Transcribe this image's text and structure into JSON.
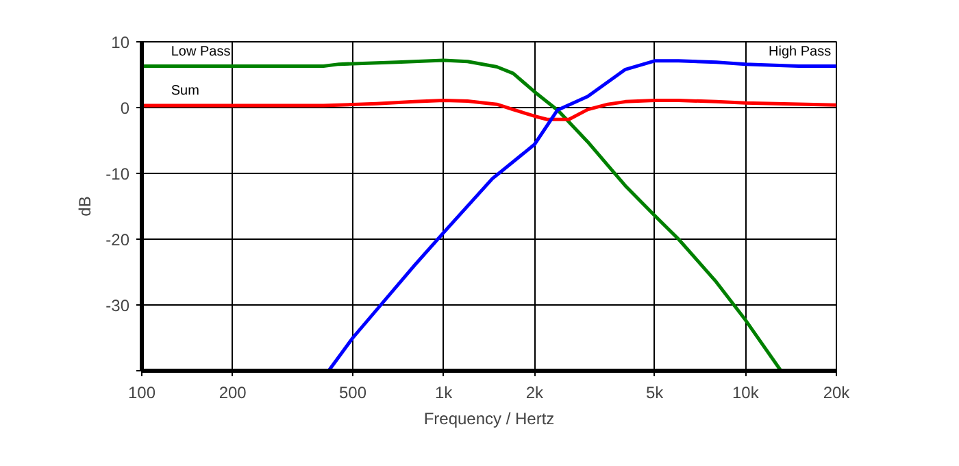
{
  "chart_data": {
    "type": "line",
    "xlabel": "Frequency / Hertz",
    "ylabel": "dB",
    "log": "x",
    "xlim": [
      100,
      20000
    ],
    "ylim": [
      -40,
      10
    ],
    "xticks": [
      100,
      200,
      500,
      {
        "value": 1000,
        "label": "1k"
      },
      {
        "value": 2000,
        "label": "2k"
      },
      {
        "value": 5000,
        "label": "5k"
      },
      {
        "value": 10000,
        "label": "10k"
      },
      {
        "value": 20000,
        "label": "20k"
      }
    ],
    "yticks": [
      {
        "value": -40,
        "label": null
      },
      -30,
      -20,
      -10,
      0,
      10
    ],
    "grid": true,
    "line_style": "solid",
    "series": [
      {
        "name": "Low Pass",
        "color": "#008000",
        "x": [
          100,
          400,
          450,
          700,
          1000,
          1200,
          1500,
          1700,
          2000,
          2400,
          3000,
          4000,
          5000,
          6000,
          8000,
          10000,
          13100
        ],
        "values": [
          6.3,
          6.3,
          6.6,
          6.9,
          7.2,
          7.0,
          6.2,
          5.2,
          2.4,
          -0.5,
          -5.2,
          -11.9,
          -16.4,
          -20,
          -26.5,
          -32.3,
          -40
        ]
      },
      {
        "name": "Sum",
        "color": "#ff0000",
        "x": [
          100,
          400,
          600,
          800,
          1000,
          1200,
          1500,
          1700,
          2000,
          2200,
          2600,
          3000,
          3500,
          4000,
          5000,
          6000,
          8000,
          10000,
          20000
        ],
        "values": [
          0.3,
          0.3,
          0.6,
          0.9,
          1.1,
          1.0,
          0.5,
          -0.3,
          -1.3,
          -1.8,
          -1.8,
          -0.3,
          0.5,
          0.9,
          1.1,
          1.1,
          0.9,
          0.7,
          0.4
        ]
      },
      {
        "name": "High Pass",
        "color": "#0000ff",
        "x": [
          416,
          500,
          619,
          800,
          1000,
          1450,
          2000,
          2380,
          3000,
          4000,
          5000,
          6000,
          8000,
          10000,
          15000,
          20000
        ],
        "values": [
          -40,
          -35,
          -30,
          -24,
          -19,
          -10.8,
          -5.6,
          -0.4,
          1.7,
          5.8,
          7.1,
          7.1,
          6.9,
          6.6,
          6.3,
          6.3
        ]
      }
    ]
  }
}
